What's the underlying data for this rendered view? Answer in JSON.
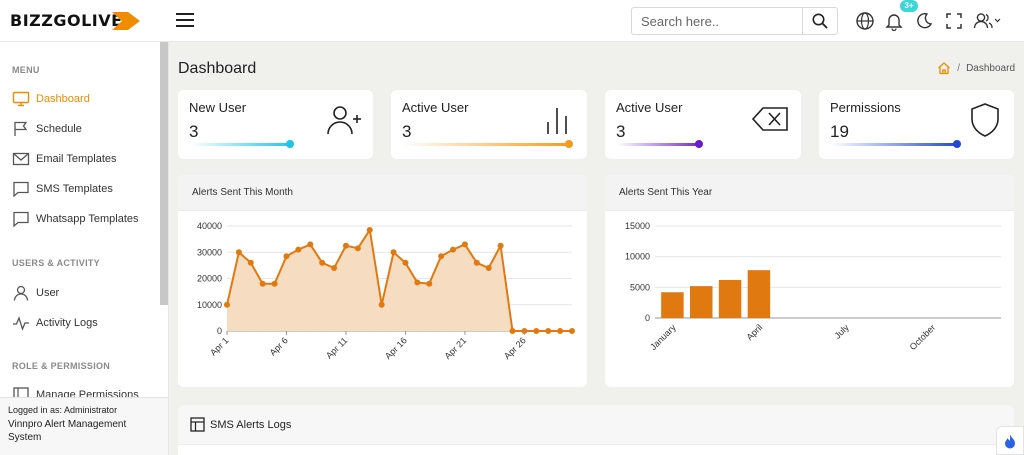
{
  "brand": {
    "logo_text": "BIZZGOLIVE"
  },
  "header": {
    "search_placeholder": "Search here..",
    "notification_badge": "3+"
  },
  "sidebar": {
    "sections": {
      "menu": "MENU",
      "users_activity": "USERS & ACTIVITY",
      "role_permission": "ROLE & PERMISSION"
    },
    "items": [
      {
        "label": "Dashboard",
        "icon": "monitor-icon",
        "active": true
      },
      {
        "label": "Schedule",
        "icon": "flag-icon",
        "active": false
      },
      {
        "label": "Email Templates",
        "icon": "mail-icon",
        "active": false
      },
      {
        "label": "SMS Templates",
        "icon": "chat-icon",
        "active": false
      },
      {
        "label": "Whatsapp Templates",
        "icon": "chat-icon",
        "active": false
      },
      {
        "label": "User",
        "icon": "user-icon",
        "active": false
      },
      {
        "label": "Activity Logs",
        "icon": "activity-icon",
        "active": false
      },
      {
        "label": "Manage Permissions",
        "icon": "permission-icon",
        "active": false
      }
    ],
    "footer": {
      "logged_in": "Logged in as: Administrator",
      "system": "Vinnpro Alert Management System"
    }
  },
  "page": {
    "title": "Dashboard",
    "breadcrumb_sep": "/",
    "breadcrumb_current": "Dashboard"
  },
  "stats": [
    {
      "label": "New User",
      "value": "3",
      "icon": "user-plus-icon",
      "color": "#1ec6e6"
    },
    {
      "label": "Active User",
      "value": "3",
      "icon": "bar-chart-icon",
      "color": "#f59a1c"
    },
    {
      "label": "Active User",
      "value": "3",
      "icon": "backspace-icon",
      "color": "#7b2fd6"
    },
    {
      "label": "Permissions",
      "value": "19",
      "icon": "shield-icon",
      "color": "#2346d8"
    }
  ],
  "panels": {
    "month_title": "Alerts Sent This Month",
    "year_title": "Alerts Sent This Year",
    "sms_logs_title": "SMS Alerts Logs"
  },
  "colors": {
    "accent": "#e07a10",
    "area_fill": "#f6dcc0"
  },
  "chart_data": [
    {
      "type": "area",
      "title": "Alerts Sent This Month",
      "x_tick_labels": [
        "Apr 1",
        "Apr 6",
        "Apr 11",
        "Apr 16",
        "Apr 21",
        "Apr 26"
      ],
      "x": [
        "Apr 1",
        "Apr 2",
        "Apr 3",
        "Apr 4",
        "Apr 5",
        "Apr 6",
        "Apr 7",
        "Apr 8",
        "Apr 9",
        "Apr 10",
        "Apr 11",
        "Apr 12",
        "Apr 13",
        "Apr 14",
        "Apr 15",
        "Apr 16",
        "Apr 17",
        "Apr 18",
        "Apr 19",
        "Apr 20",
        "Apr 21",
        "Apr 22",
        "Apr 23",
        "Apr 24",
        "Apr 25",
        "Apr 26",
        "Apr 27",
        "Apr 28",
        "Apr 29",
        "Apr 30"
      ],
      "values": [
        10000,
        30000,
        26000,
        18000,
        18000,
        28500,
        31000,
        33000,
        26000,
        24000,
        32500,
        31500,
        38500,
        10000,
        30000,
        26000,
        18500,
        18000,
        28500,
        31000,
        33000,
        26000,
        24000,
        32500,
        0,
        0,
        0,
        0,
        0,
        0
      ],
      "ylim": [
        0,
        40000
      ],
      "y_ticks": [
        0,
        10000,
        20000,
        30000,
        40000
      ],
      "grid": true
    },
    {
      "type": "bar",
      "title": "Alerts Sent This Year",
      "categories": [
        "January",
        "February",
        "March",
        "April",
        "May",
        "June",
        "July",
        "August",
        "September",
        "October",
        "November",
        "December"
      ],
      "x_tick_labels": [
        "January",
        "April",
        "July",
        "October"
      ],
      "values": [
        4200,
        5200,
        6200,
        7800,
        0,
        0,
        0,
        0,
        0,
        0,
        0,
        0
      ],
      "ylim": [
        0,
        15000
      ],
      "y_ticks": [
        0,
        5000,
        10000,
        15000
      ],
      "grid": true
    }
  ]
}
